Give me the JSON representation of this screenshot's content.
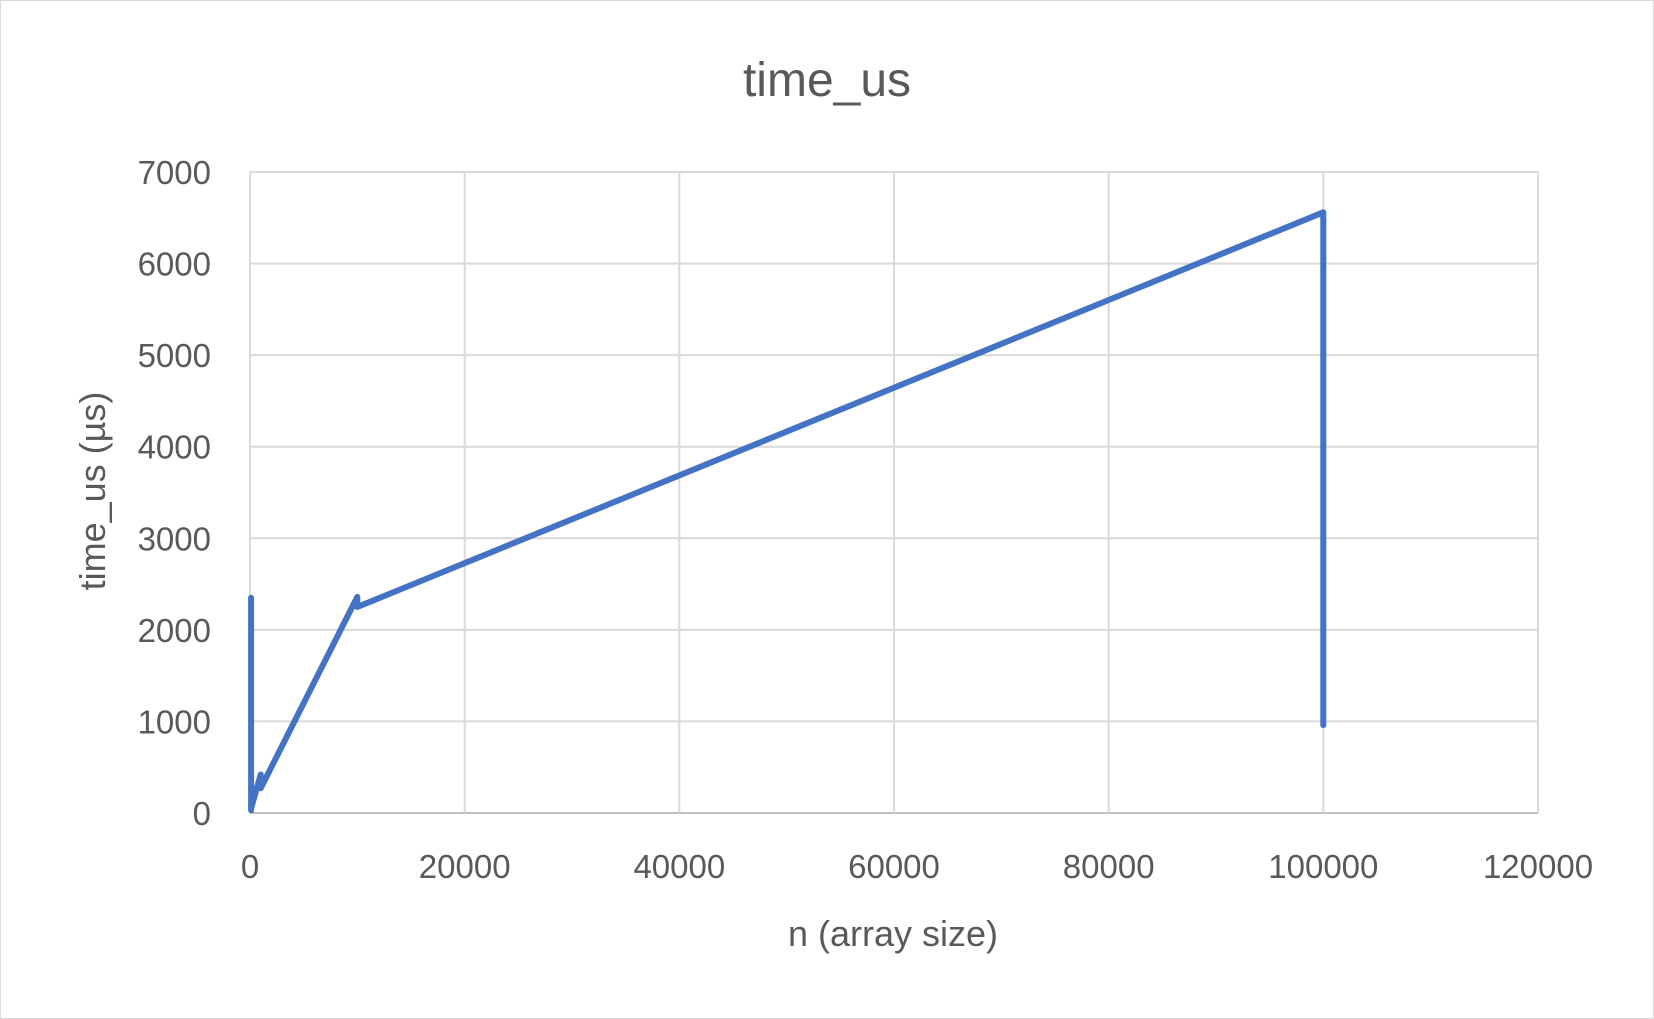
{
  "chart_data": {
    "type": "scatter",
    "title": "time_us",
    "xlabel": "n (array size)",
    "ylabel": "time_us  (µs)",
    "xlim": [
      0,
      120000
    ],
    "ylim": [
      0,
      7000
    ],
    "x_ticks": [
      "0",
      "20000",
      "40000",
      "60000",
      "80000",
      "100000",
      "120000"
    ],
    "y_ticks": [
      "0",
      "1000",
      "2000",
      "3000",
      "4000",
      "5000",
      "6000",
      "7000"
    ],
    "grid": true,
    "legend": "none",
    "series": [
      {
        "color": "#4472c4",
        "points": [
          [
            100,
            2350
          ],
          [
            100,
            30
          ],
          [
            100,
            2350
          ],
          [
            100,
            50
          ],
          [
            1000,
            420
          ],
          [
            1000,
            270
          ],
          [
            10000,
            2360
          ],
          [
            10000,
            2250
          ],
          [
            100000,
            6560
          ],
          [
            100000,
            960
          ]
        ]
      }
    ]
  }
}
